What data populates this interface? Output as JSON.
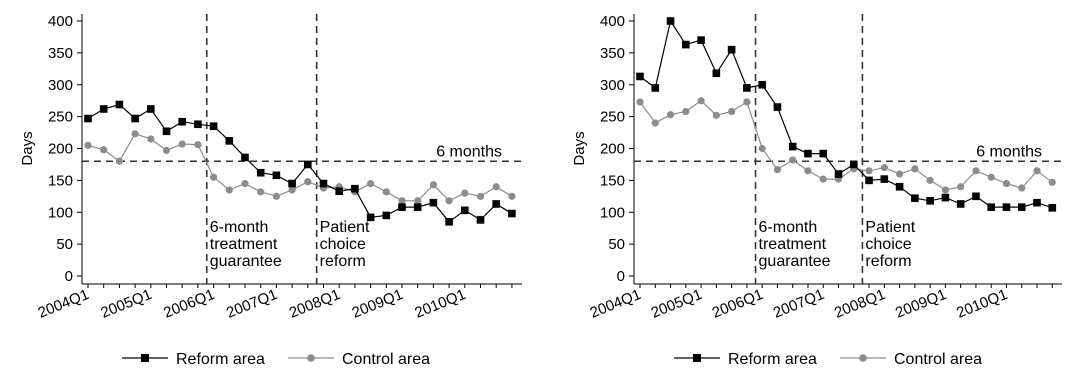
{
  "chart_data": [
    {
      "type": "line",
      "ylabel": "Days",
      "xlabel": "",
      "ylim": [
        0,
        400
      ],
      "yticks": [
        0,
        50,
        100,
        150,
        200,
        250,
        300,
        350,
        400
      ],
      "x_tick_labels": [
        "2004Q1",
        "2005Q1",
        "2006Q1",
        "2007Q1",
        "2008Q1",
        "2009Q1",
        "2010Q1"
      ],
      "threshold": {
        "value": 180,
        "label": "6 months"
      },
      "events": [
        {
          "quarter_index": 8,
          "lines": [
            "6-month",
            "treatment",
            "guarantee"
          ]
        },
        {
          "quarter_index": 15,
          "lines": [
            "Patient",
            "choice",
            "reform"
          ]
        }
      ],
      "series": [
        {
          "name": "Reform area",
          "color": "#000000",
          "marker": "square",
          "values": [
            247,
            262,
            269,
            247,
            262,
            227,
            242,
            238,
            235,
            212,
            186,
            162,
            158,
            145,
            175,
            145,
            133,
            137,
            92,
            95,
            108,
            108,
            115,
            85,
            103,
            88,
            113,
            98
          ]
        },
        {
          "name": "Control area",
          "color": "#8c8c8c",
          "marker": "circle",
          "values": [
            205,
            198,
            180,
            223,
            215,
            197,
            207,
            206,
            155,
            135,
            145,
            132,
            125,
            135,
            148,
            138,
            140,
            132,
            145,
            132,
            118,
            118,
            143,
            118,
            130,
            125,
            140,
            125
          ]
        }
      ]
    },
    {
      "type": "line",
      "ylabel": "Days",
      "xlabel": "",
      "ylim": [
        0,
        400
      ],
      "yticks": [
        0,
        50,
        100,
        150,
        200,
        250,
        300,
        350,
        400
      ],
      "x_tick_labels": [
        "2004Q1",
        "2005Q1",
        "2006Q1",
        "2007Q1",
        "2008Q1",
        "2009Q1",
        "2010Q1"
      ],
      "threshold": {
        "value": 180,
        "label": "6 months"
      },
      "events": [
        {
          "quarter_index": 8,
          "lines": [
            "6-month",
            "treatment",
            "guarantee"
          ]
        },
        {
          "quarter_index": 15,
          "lines": [
            "Patient",
            "choice",
            "reform"
          ]
        }
      ],
      "series": [
        {
          "name": "Reform area",
          "color": "#000000",
          "marker": "square",
          "values": [
            313,
            295,
            400,
            363,
            370,
            318,
            355,
            295,
            300,
            265,
            203,
            192,
            192,
            160,
            175,
            150,
            152,
            140,
            122,
            118,
            123,
            113,
            125,
            108,
            108,
            108,
            115,
            107
          ]
        },
        {
          "name": "Control area",
          "color": "#8c8c8c",
          "marker": "circle",
          "values": [
            273,
            240,
            253,
            258,
            275,
            252,
            258,
            273,
            200,
            167,
            182,
            165,
            152,
            152,
            168,
            165,
            170,
            160,
            168,
            150,
            135,
            140,
            165,
            155,
            145,
            138,
            165,
            147
          ]
        }
      ]
    }
  ],
  "legend": [
    {
      "label": "Reform area",
      "marker": "square",
      "color": "#000000"
    },
    {
      "label": "Control area",
      "marker": "circle",
      "color": "#8c8c8c"
    }
  ]
}
